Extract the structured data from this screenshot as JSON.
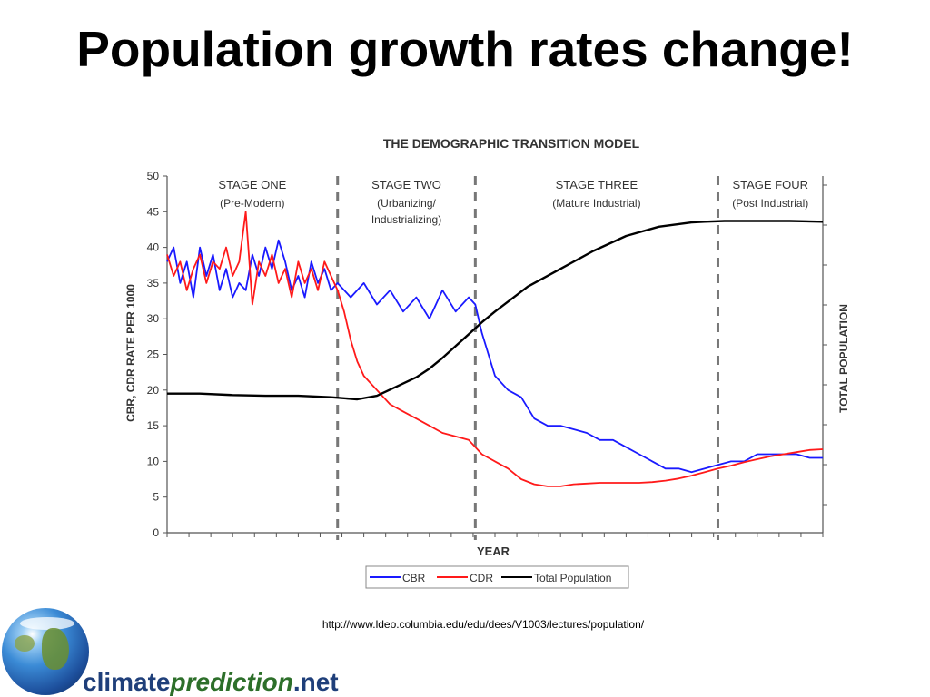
{
  "slide": {
    "title": "Population growth rates change!",
    "source_url": "http://www.ldeo.columbia.edu/edu/dees/V1003/lectures/population/"
  },
  "logo": {
    "icon": "globe-icon",
    "brand_part1": "climate",
    "brand_part2": "prediction",
    "brand_part3": ".net",
    "colors": {
      "dark_blue": "#1f3f7a",
      "green": "#2d6f2a"
    }
  },
  "chart_data": {
    "type": "line",
    "title": "THE DEMOGRAPHIC TRANSITION MODEL",
    "xlabel": "YEAR",
    "ylabel": "CBR, CDR RATE PER 1000",
    "y2label": "TOTAL POPULATION",
    "ylim": [
      0,
      50
    ],
    "yticks": [
      "0",
      "5",
      "10",
      "15",
      "20",
      "25",
      "30",
      "35",
      "40",
      "45",
      "50"
    ],
    "x_range": [
      0,
      100
    ],
    "grid": false,
    "legend_position": "bottom-center",
    "stages": [
      {
        "name": "STAGE ONE",
        "sub": [
          "(Pre-Modern)"
        ],
        "x_start": 0,
        "x_end": 26
      },
      {
        "name": "STAGE TWO",
        "sub": [
          "(Urbanizing/",
          "Industrializing)"
        ],
        "x_start": 26,
        "x_end": 47
      },
      {
        "name": "STAGE THREE",
        "sub": [
          "(Mature Industrial)"
        ],
        "x_start": 47,
        "x_end": 84
      },
      {
        "name": "STAGE FOUR",
        "sub": [
          "(Post Industrial)"
        ],
        "x_start": 84,
        "x_end": 100
      }
    ],
    "series": [
      {
        "name": "CBR",
        "color": "#1a1aff",
        "x": [
          0,
          1,
          2,
          3,
          4,
          5,
          6,
          7,
          8,
          9,
          10,
          11,
          12,
          13,
          14,
          15,
          16,
          17,
          18,
          19,
          20,
          21,
          22,
          23,
          24,
          25,
          26,
          28,
          30,
          32,
          34,
          36,
          38,
          40,
          42,
          44,
          46,
          47,
          48,
          49,
          50,
          52,
          54,
          56,
          58,
          60,
          62,
          64,
          66,
          68,
          70,
          72,
          74,
          76,
          78,
          80,
          82,
          84,
          86,
          88,
          90,
          92,
          94,
          96,
          98,
          100
        ],
        "values": [
          38,
          40,
          35,
          38,
          33,
          40,
          36,
          39,
          34,
          37,
          33,
          35,
          34,
          39,
          36,
          40,
          37,
          41,
          38,
          34,
          36,
          33,
          38,
          35,
          37,
          34,
          35,
          33,
          35,
          32,
          34,
          31,
          33,
          30,
          34,
          31,
          33,
          32,
          28,
          25,
          22,
          20,
          19,
          16,
          15,
          15,
          14.5,
          14,
          13,
          13,
          12,
          11,
          10,
          9,
          9,
          8.5,
          9,
          9.5,
          10,
          10,
          11,
          11,
          11,
          11,
          10.5,
          10.5
        ]
      },
      {
        "name": "CDR",
        "color": "#ff1a1a",
        "x": [
          0,
          1,
          2,
          3,
          4,
          5,
          6,
          7,
          8,
          9,
          10,
          11,
          12,
          13,
          14,
          15,
          16,
          17,
          18,
          19,
          20,
          21,
          22,
          23,
          24,
          25,
          26,
          27,
          28,
          29,
          30,
          32,
          34,
          36,
          38,
          40,
          42,
          44,
          46,
          48,
          50,
          52,
          54,
          56,
          58,
          60,
          62,
          64,
          66,
          68,
          70,
          72,
          74,
          76,
          78,
          80,
          82,
          84,
          86,
          88,
          90,
          92,
          94,
          96,
          98,
          100
        ],
        "values": [
          39,
          36,
          38,
          34,
          37,
          39,
          35,
          38,
          37,
          40,
          36,
          38,
          45,
          32,
          38,
          36,
          39,
          35,
          37,
          33,
          38,
          35,
          37,
          34,
          38,
          36,
          34,
          31,
          27,
          24,
          22,
          20,
          18,
          17,
          16,
          15,
          14,
          13.5,
          13,
          11,
          10,
          9,
          7.5,
          6.8,
          6.5,
          6.5,
          6.8,
          6.9,
          7,
          7,
          7,
          7,
          7.1,
          7.3,
          7.6,
          8,
          8.5,
          9,
          9.4,
          9.9,
          10.3,
          10.7,
          11,
          11.3,
          11.6,
          11.7
        ]
      },
      {
        "name": "Total Population",
        "color": "#000000",
        "x": [
          0,
          5,
          10,
          15,
          20,
          25,
          29,
          32,
          35,
          38,
          40,
          42,
          45,
          48,
          50,
          55,
          60,
          65,
          70,
          75,
          80,
          82,
          85,
          88,
          90,
          95,
          100
        ],
        "values": [
          19.5,
          19.5,
          19.3,
          19.2,
          19.2,
          19.0,
          18.7,
          19.2,
          20.5,
          21.8,
          23,
          24.5,
          27,
          29.5,
          31,
          34.5,
          37,
          39.5,
          41.6,
          42.9,
          43.5,
          43.6,
          43.7,
          43.7,
          43.7,
          43.7,
          43.6
        ]
      }
    ]
  }
}
